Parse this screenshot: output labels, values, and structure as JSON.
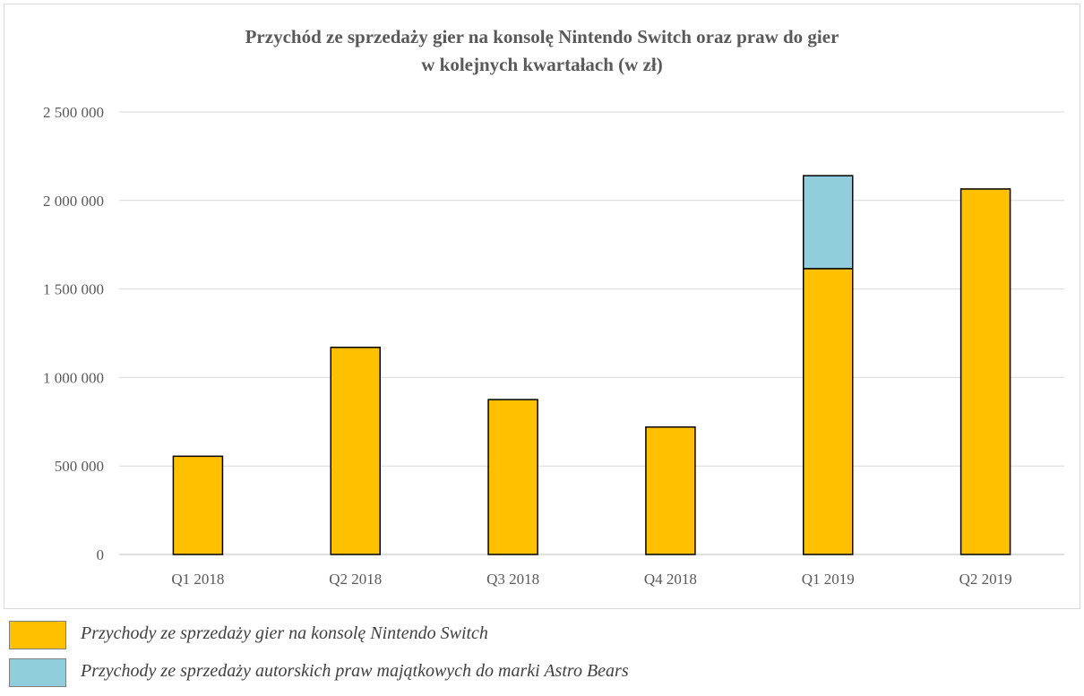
{
  "chart_data": {
    "type": "bar",
    "stacked": true,
    "title_lines": [
      "Przychód ze sprzedaży gier na konsolę Nintendo Switch oraz praw do gier",
      "w kolejnych kwartałach (w zł)"
    ],
    "categories": [
      "Q1 2018",
      "Q2 2018",
      "Q3 2018",
      "Q4 2018",
      "Q1 2019",
      "Q2 2019"
    ],
    "series": [
      {
        "name": "Przychody ze sprzedaży gier na konsolę Nintendo Switch",
        "color": "#ffc000",
        "values": [
          555000,
          1170000,
          875000,
          720000,
          1615000,
          2065000
        ]
      },
      {
        "name": "Przychody ze sprzedaży autorskich praw majątkowych do marki Astro Bears",
        "color": "#92cddc",
        "values": [
          0,
          0,
          0,
          0,
          525000,
          0
        ]
      }
    ],
    "ylim": [
      0,
      2500000
    ],
    "yticks": [
      0,
      500000,
      1000000,
      1500000,
      2000000,
      2500000
    ],
    "ytick_labels": [
      "0",
      "500 000",
      "1 000 000",
      "1 500 000",
      "2 000 000",
      "2 500 000"
    ],
    "grid": true,
    "legend_position": "bottom-left"
  }
}
